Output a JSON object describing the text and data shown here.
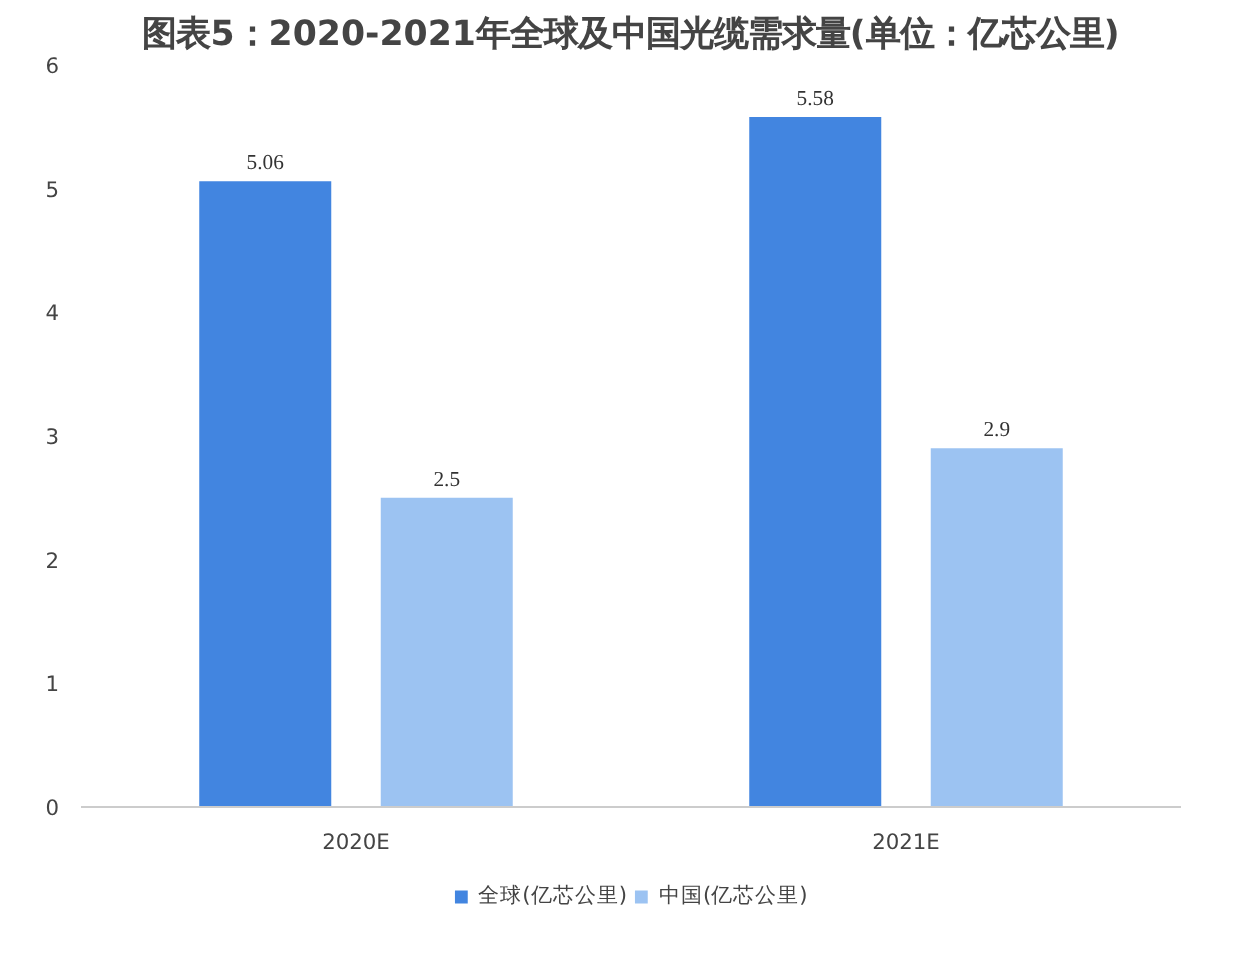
{
  "chart_data": {
    "type": "bar",
    "title": "图表5：2020-2021年全球及中国光缆需求量(单位：亿芯公里)",
    "categories": [
      "2020E",
      "2021E"
    ],
    "series": [
      {
        "name": "全球(亿芯公里)",
        "color": "#4285e0",
        "values": [
          5.06,
          5.58
        ]
      },
      {
        "name": "中国(亿芯公里)",
        "color": "#9cc3f2",
        "values": [
          2.5,
          2.9
        ]
      }
    ],
    "ylim": [
      0,
      6
    ],
    "yticks": [
      0,
      1,
      2,
      3,
      4,
      5,
      6
    ],
    "grid": false,
    "legend": "bottom",
    "data_labels": true
  }
}
